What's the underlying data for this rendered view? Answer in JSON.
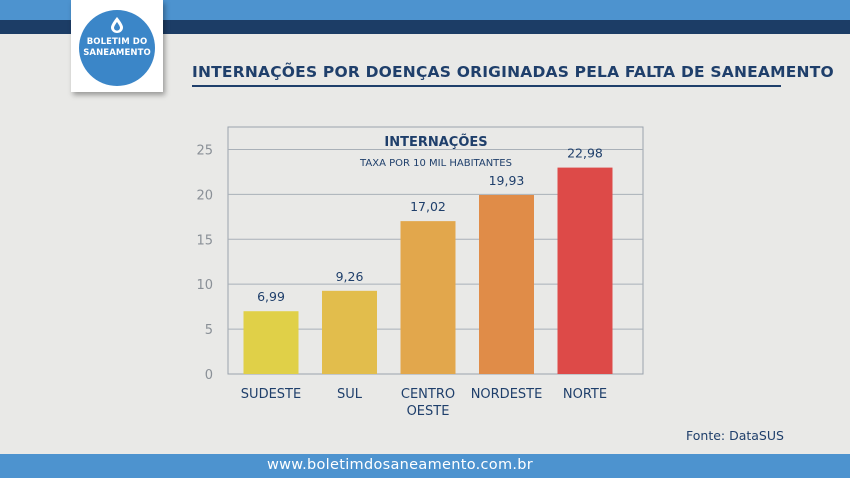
{
  "header": {
    "logo_line1": "BOLETIM DO",
    "logo_line2": "SANEAMENTO",
    "title": "INTERNAÇÕES POR DOENÇAS ORIGINADAS PELA FALTA DE SANEAMENTO"
  },
  "chart_data": {
    "type": "bar",
    "title": "INTERNAÇÕES",
    "subtitle": "TAXA POR 10 MIL HABITANTES",
    "categories": [
      [
        "SUDESTE"
      ],
      [
        "SUL"
      ],
      [
        "CENTRO",
        "OESTE"
      ],
      [
        "NORDESTE"
      ],
      [
        "NORTE"
      ]
    ],
    "values": [
      6.99,
      9.26,
      17.02,
      19.93,
      22.98
    ],
    "value_labels": [
      "6,99",
      "9,26",
      "17,02",
      "19,93",
      "22,98"
    ],
    "yticks": [
      0,
      5,
      10,
      15,
      20,
      25
    ],
    "ylim": [
      0,
      27.5
    ],
    "xlabel": "",
    "ylabel": "",
    "grid": true,
    "colors": [
      "#e0d048",
      "#e2bd4c",
      "#e2a74c",
      "#e08c48",
      "#dd4a48"
    ]
  },
  "source": "Fonte: DataSUS",
  "footer": {
    "url": "www.boletimdosaneamento.com.br"
  },
  "colors": {
    "navy": "#1f3f6b",
    "accent_blue": "#4d93cf"
  }
}
